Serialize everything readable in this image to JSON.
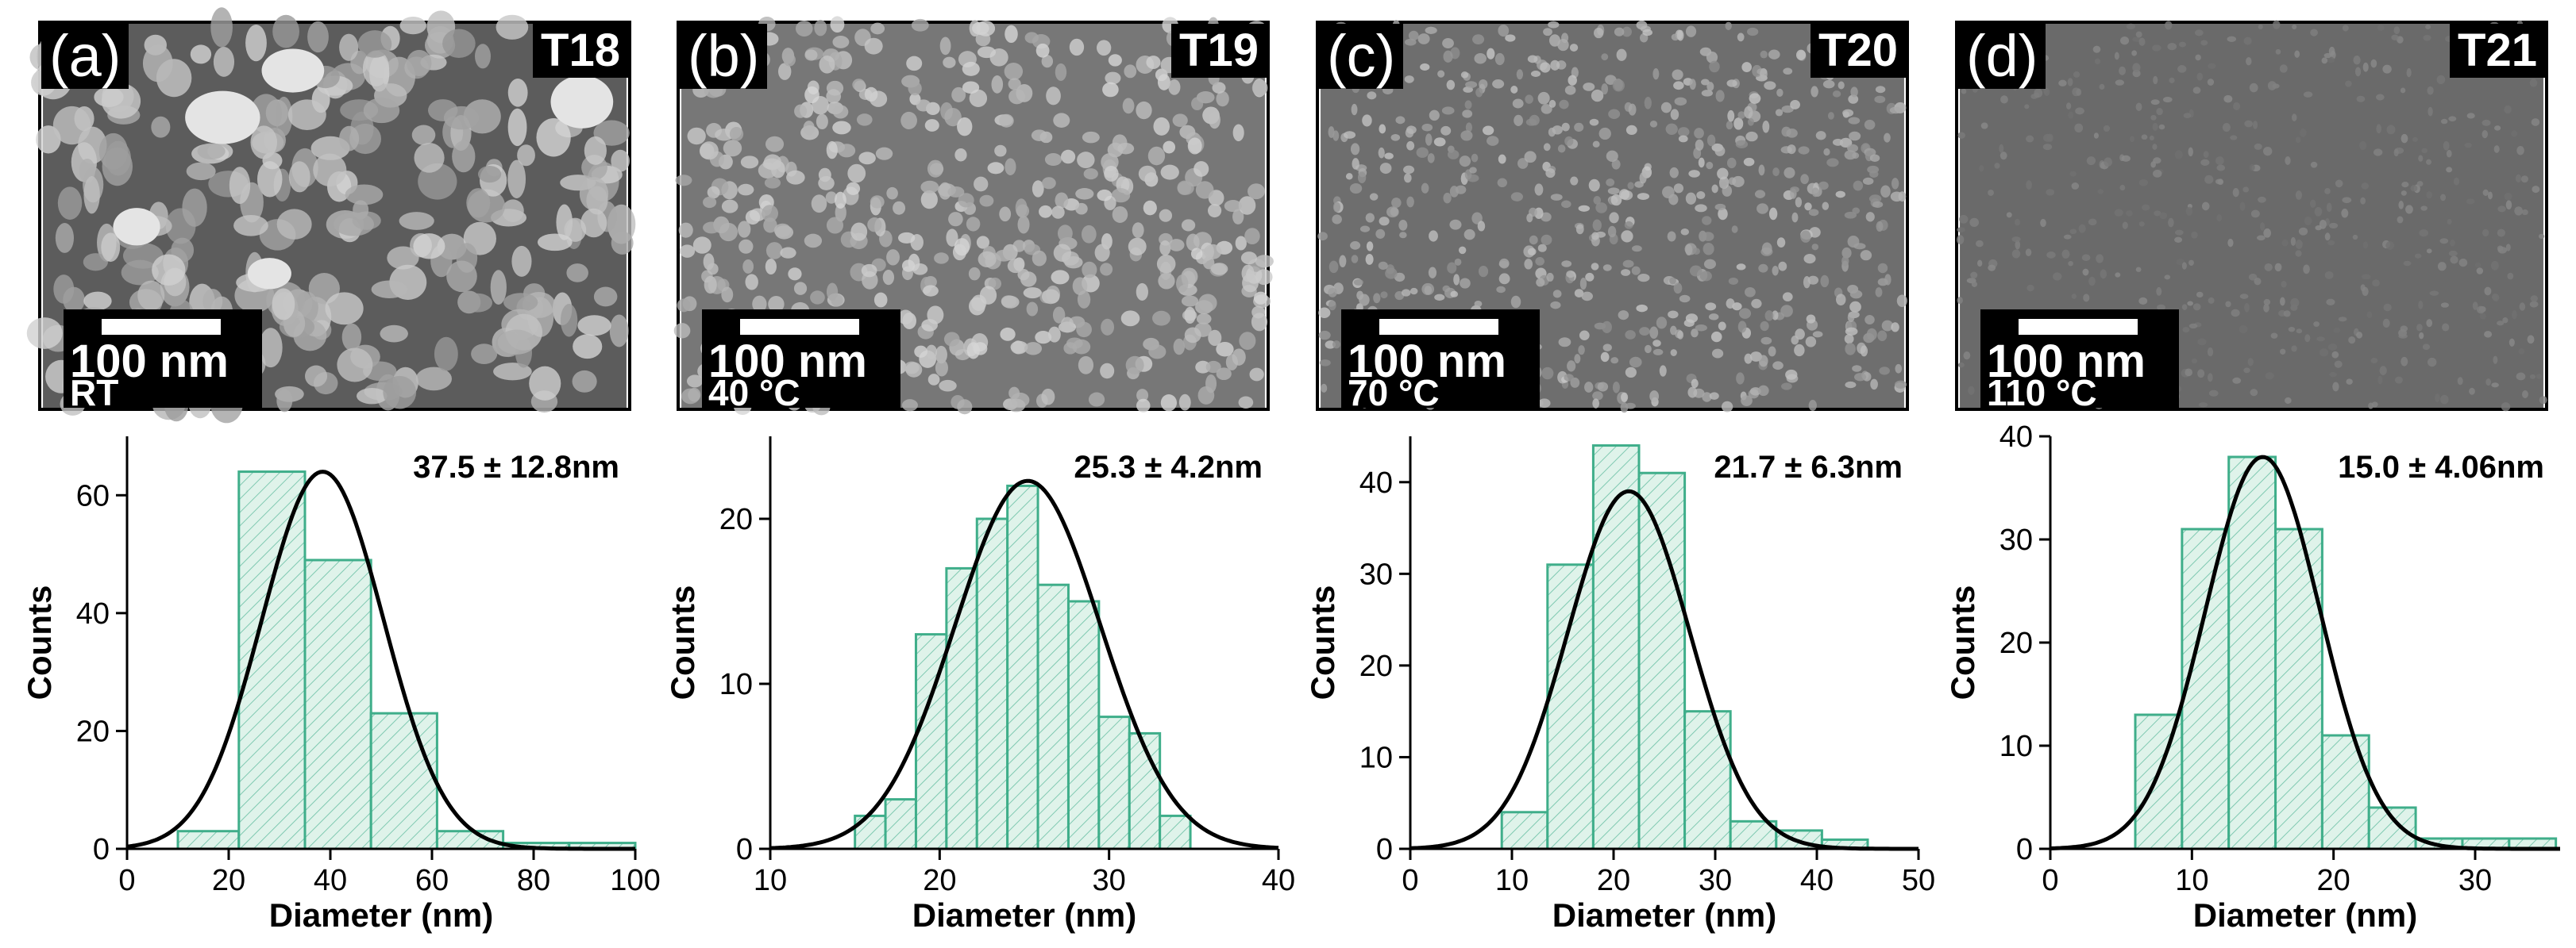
{
  "colors": {
    "bar_stroke": "#3fae8a",
    "bar_fill": "#dff3ea",
    "fit": "#000000",
    "sem_base": "#7a7a7a"
  },
  "panels": [
    {
      "label": "(a)",
      "sample": "T18",
      "scale": "100 nm",
      "temp": "RT"
    },
    {
      "label": "(b)",
      "sample": "T19",
      "scale": "100 nm",
      "temp": "40 °C"
    },
    {
      "label": "(c)",
      "sample": "T20",
      "scale": "100 nm",
      "temp": "70 °C"
    },
    {
      "label": "(d)",
      "sample": "T21",
      "scale": "100 nm",
      "temp": "110 °C"
    }
  ],
  "chart_data": [
    {
      "type": "bar",
      "title": "T18 (RT)",
      "xlabel": "Diameter (nm)",
      "ylabel": "Counts",
      "annotation": "37.5 ± 12.8nm",
      "xlim": [
        0,
        100
      ],
      "ylim": [
        0,
        70
      ],
      "xticks": [
        0,
        20,
        40,
        60,
        80,
        100
      ],
      "yticks": [
        0,
        20,
        40,
        60
      ],
      "bins": [
        [
          10,
          22,
          3
        ],
        [
          22,
          35,
          64
        ],
        [
          35,
          48,
          49
        ],
        [
          48,
          61,
          23
        ],
        [
          61,
          74,
          3
        ],
        [
          74,
          87,
          1
        ],
        [
          87,
          100,
          1
        ]
      ],
      "fit": {
        "mean": 38.5,
        "sd": 12.0,
        "peak": 64
      }
    },
    {
      "type": "bar",
      "title": "T19 (40 °C)",
      "xlabel": "Diameter (nm)",
      "ylabel": "Counts",
      "annotation": "25.3 ± 4.2nm",
      "xlim": [
        10,
        40
      ],
      "ylim": [
        0,
        25
      ],
      "xticks": [
        10,
        20,
        30,
        40
      ],
      "yticks": [
        0,
        10,
        20
      ],
      "bins": [
        [
          15,
          16.8,
          2
        ],
        [
          16.8,
          18.6,
          3
        ],
        [
          18.6,
          20.4,
          13
        ],
        [
          20.4,
          22.2,
          17
        ],
        [
          22.2,
          24,
          20
        ],
        [
          24,
          25.8,
          22
        ],
        [
          25.8,
          27.6,
          16
        ],
        [
          27.6,
          29.4,
          15
        ],
        [
          29.4,
          31.2,
          8
        ],
        [
          31.2,
          33,
          7
        ],
        [
          33,
          34.8,
          2
        ]
      ],
      "fit": {
        "mean": 25.2,
        "sd": 4.3,
        "peak": 22.3
      }
    },
    {
      "type": "bar",
      "title": "T20 (70 °C)",
      "xlabel": "Diameter (nm)",
      "ylabel": "Counts",
      "annotation": "21.7 ± 6.3nm",
      "xlim": [
        0,
        50
      ],
      "ylim": [
        0,
        45
      ],
      "xticks": [
        0,
        10,
        20,
        30,
        40,
        50
      ],
      "yticks": [
        0,
        10,
        20,
        30,
        40
      ],
      "bins": [
        [
          9,
          13.5,
          4
        ],
        [
          13.5,
          18,
          31
        ],
        [
          18,
          22.5,
          44
        ],
        [
          22.5,
          27,
          41
        ],
        [
          27,
          31.5,
          15
        ],
        [
          31.5,
          36,
          3
        ],
        [
          36,
          40.5,
          2
        ],
        [
          40.5,
          45,
          1
        ]
      ],
      "fit": {
        "mean": 21.5,
        "sd": 6.0,
        "peak": 39
      }
    },
    {
      "type": "bar",
      "title": "T21 (110 °C)",
      "xlabel": "Diameter (nm)",
      "ylabel": "Counts",
      "annotation": "15.0 ± 4.06nm",
      "xlim": [
        0,
        36
      ],
      "ylim": [
        0,
        40
      ],
      "xticks": [
        0,
        10,
        20,
        30
      ],
      "yticks": [
        0,
        10,
        20,
        30,
        40
      ],
      "bins": [
        [
          6,
          9.3,
          13
        ],
        [
          9.3,
          12.6,
          31
        ],
        [
          12.6,
          15.9,
          38
        ],
        [
          15.9,
          19.2,
          31
        ],
        [
          19.2,
          22.5,
          11
        ],
        [
          22.5,
          25.8,
          4
        ],
        [
          25.8,
          29.1,
          1
        ],
        [
          29.1,
          32.4,
          1
        ],
        [
          32.4,
          35.7,
          1
        ]
      ],
      "fit": {
        "mean": 15.0,
        "sd": 4.06,
        "peak": 38
      }
    }
  ]
}
